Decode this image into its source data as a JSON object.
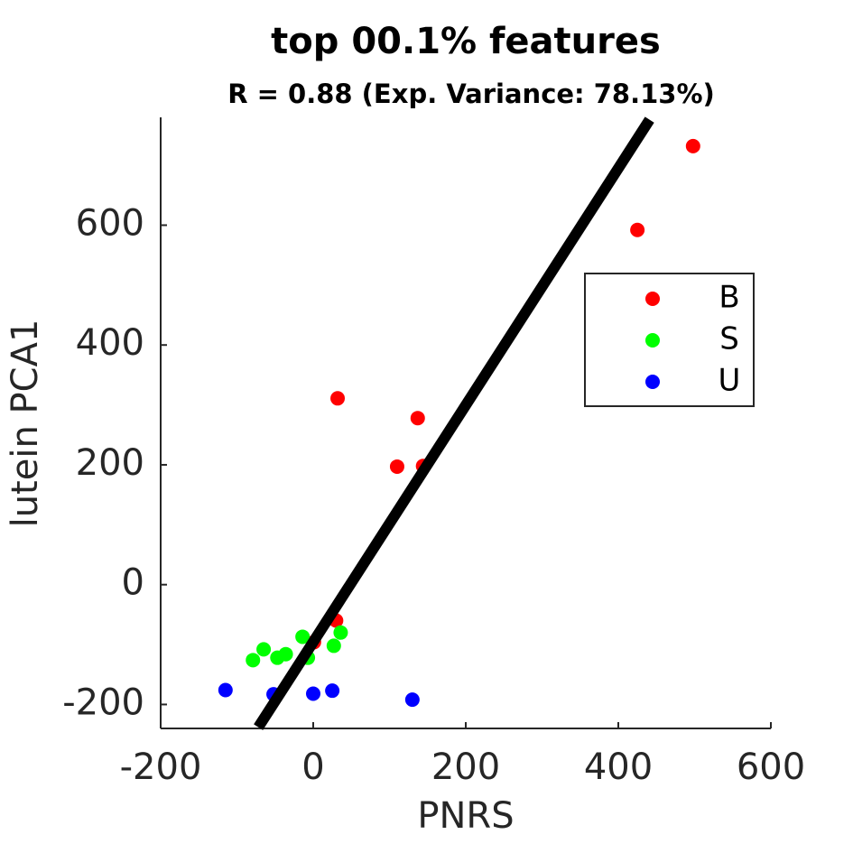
{
  "chart_data": {
    "type": "scatter",
    "title": "top 00.1% features",
    "subtitle": "R = 0.88 (Exp. Variance: 78.13%)",
    "x_label": "PNRS",
    "y_label": "lutein PCA1",
    "xlim": [
      -200,
      600
    ],
    "ylim": [
      -240,
      780
    ],
    "xticks": [
      -200,
      0,
      200,
      400,
      600
    ],
    "yticks": [
      -200,
      0,
      200,
      400,
      600
    ],
    "legend": "right",
    "series": [
      {
        "name": "B",
        "color": "#ff0000",
        "x": [
          498,
          425,
          32,
          137,
          110,
          144,
          30,
          1
        ],
        "y": [
          732,
          592,
          311,
          278,
          197,
          198,
          -60,
          -96
        ]
      },
      {
        "name": "S",
        "color": "#00ff00",
        "x": [
          36,
          27,
          -14,
          -7,
          -36,
          -47,
          -65,
          -79
        ],
        "y": [
          -80,
          -102,
          -87,
          -122,
          -116,
          -122,
          -108,
          -126
        ]
      },
      {
        "name": "U",
        "color": "#0000ff",
        "x": [
          -115,
          -52,
          0,
          25,
          130
        ],
        "y": [
          -176,
          -183,
          -182,
          -177,
          -192
        ]
      }
    ],
    "fit": {
      "color": "#000000",
      "x": [
        -72,
        441
      ],
      "y": [
        -238,
        776
      ]
    }
  }
}
